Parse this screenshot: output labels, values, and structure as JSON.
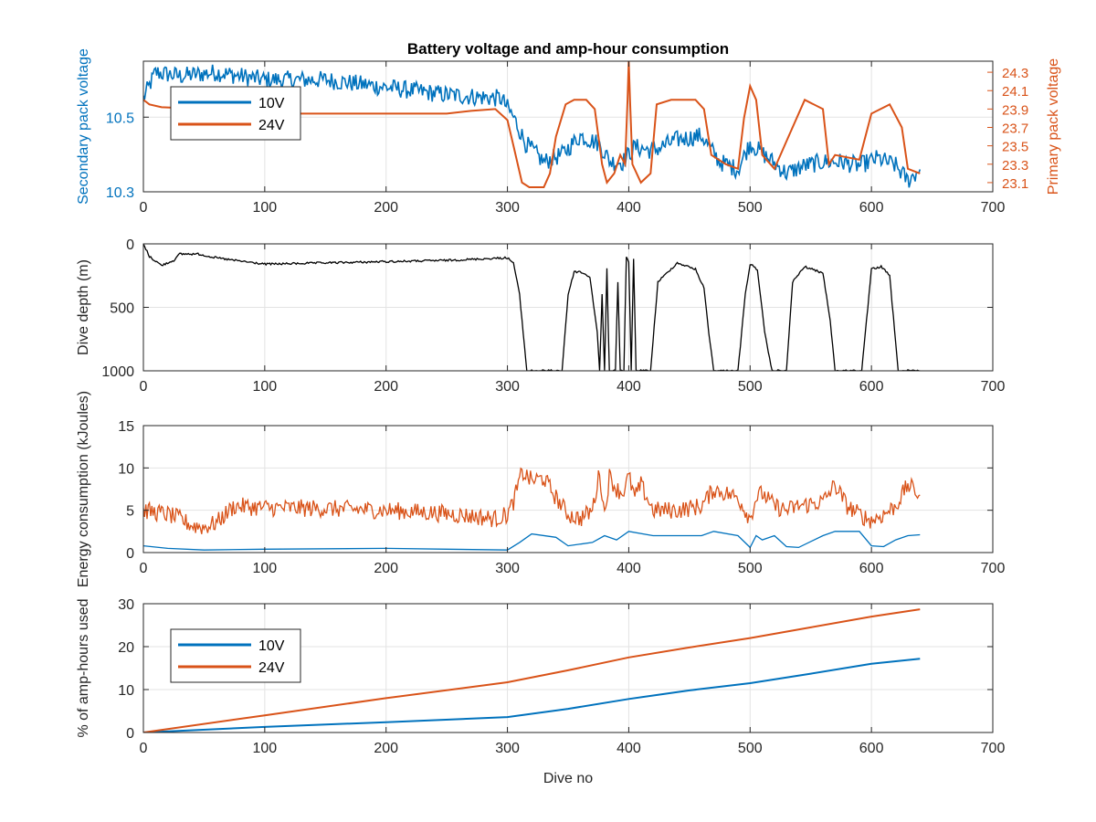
{
  "chart_data": [
    {
      "type": "line",
      "title": "Battery voltage and amp-hour consumption",
      "xlabel": "",
      "xlim": [
        0,
        700
      ],
      "xticks": [
        0,
        100,
        200,
        300,
        400,
        500,
        600,
        700
      ],
      "ylabel": "Secondary pack voltage",
      "ylim": [
        10.3,
        10.65
      ],
      "yticks": [
        10.3,
        10.5
      ],
      "y2label": "Primary pack voltage",
      "y2lim": [
        23.0,
        24.42
      ],
      "y2ticks": [
        23.1,
        23.3,
        23.5,
        23.7,
        23.9,
        24.1,
        24.3
      ],
      "grid": true,
      "legend": {
        "location": "top-left",
        "entries": [
          "10V",
          "24V"
        ]
      },
      "series": [
        {
          "name": "10V",
          "axis": "left",
          "color": "#0072bd",
          "noisy": true,
          "x": [
            0,
            10,
            30,
            60,
            100,
            150,
            200,
            250,
            295,
            305,
            315,
            330,
            345,
            360,
            375,
            385,
            395,
            405,
            420,
            440,
            460,
            475,
            490,
            500,
            515,
            530,
            545,
            560,
            575,
            590,
            605,
            620,
            630,
            640
          ],
          "y": [
            10.55,
            10.62,
            10.61,
            10.62,
            10.6,
            10.6,
            10.58,
            10.56,
            10.55,
            10.5,
            10.43,
            10.38,
            10.4,
            10.45,
            10.43,
            10.38,
            10.38,
            10.42,
            10.41,
            10.44,
            10.45,
            10.38,
            10.36,
            10.43,
            10.39,
            10.35,
            10.37,
            10.38,
            10.38,
            10.37,
            10.39,
            10.37,
            10.33,
            10.36
          ]
        },
        {
          "name": "24V",
          "axis": "right",
          "color": "#d95319",
          "noisy": false,
          "x": [
            0,
            5,
            15,
            50,
            100,
            150,
            200,
            250,
            270,
            290,
            300,
            305,
            312,
            318,
            330,
            335,
            340,
            348,
            355,
            365,
            372,
            378,
            382,
            388,
            393,
            397,
            399,
            400,
            401,
            403,
            410,
            418,
            423,
            435,
            455,
            462,
            468,
            480,
            490,
            495,
            500,
            505,
            510,
            520,
            530,
            545,
            560,
            565,
            570,
            590,
            600,
            615,
            625,
            630,
            640
          ],
          "y": [
            24.0,
            23.95,
            23.92,
            23.9,
            23.85,
            23.85,
            23.85,
            23.85,
            23.88,
            23.9,
            23.78,
            23.5,
            23.1,
            23.05,
            23.05,
            23.2,
            23.6,
            23.95,
            24.0,
            24.0,
            23.9,
            23.3,
            23.1,
            23.2,
            23.4,
            23.3,
            24.0,
            24.42,
            24.0,
            23.3,
            23.1,
            23.2,
            23.95,
            24.0,
            24.0,
            23.9,
            23.4,
            23.3,
            23.25,
            23.8,
            24.15,
            24.0,
            23.4,
            23.25,
            23.55,
            24.0,
            23.9,
            23.3,
            23.4,
            23.35,
            23.85,
            23.95,
            23.7,
            23.25,
            23.2
          ]
        }
      ]
    },
    {
      "type": "line",
      "xlim": [
        0,
        700
      ],
      "xticks": [
        0,
        100,
        200,
        300,
        400,
        500,
        600,
        700
      ],
      "ylabel": "Dive depth (m)",
      "ylim": [
        0,
        1000
      ],
      "yticks": [
        0,
        500,
        1000
      ],
      "y_reversed": true,
      "grid": true,
      "series": [
        {
          "color": "#000000",
          "noisy": true,
          "x": [
            0,
            5,
            15,
            25,
            30,
            45,
            60,
            75,
            100,
            150,
            200,
            250,
            300,
            305,
            310,
            316,
            330,
            345,
            350,
            355,
            360,
            368,
            374,
            376,
            378,
            380,
            382,
            384,
            386,
            389,
            391,
            393,
            396,
            398,
            400,
            402,
            404,
            406,
            410,
            418,
            424,
            440,
            455,
            462,
            466,
            470,
            490,
            496,
            500,
            506,
            512,
            518,
            530,
            535,
            545,
            560,
            566,
            570,
            592,
            597,
            600,
            608,
            615,
            622,
            628,
            640
          ],
          "y": [
            0,
            100,
            170,
            130,
            80,
            80,
            110,
            130,
            160,
            150,
            140,
            130,
            110,
            150,
            400,
            1000,
            1000,
            1000,
            400,
            220,
            220,
            260,
            700,
            1000,
            400,
            1000,
            200,
            1000,
            1000,
            1000,
            300,
            1000,
            1000,
            100,
            150,
            1000,
            120,
            1000,
            1000,
            1000,
            300,
            150,
            200,
            350,
            700,
            1000,
            1000,
            400,
            160,
            200,
            700,
            1000,
            1000,
            300,
            180,
            230,
            600,
            1000,
            1000,
            500,
            200,
            180,
            250,
            1000,
            1000,
            1000
          ]
        }
      ]
    },
    {
      "type": "line",
      "xlim": [
        0,
        700
      ],
      "xticks": [
        0,
        100,
        200,
        300,
        400,
        500,
        600,
        700
      ],
      "ylabel": "Energy consumption (kJoules)",
      "ylim": [
        0,
        15
      ],
      "yticks": [
        0,
        5,
        10,
        15
      ],
      "grid": true,
      "series": [
        {
          "name": "24V",
          "color": "#d95319",
          "noisy": true,
          "x": [
            0,
            20,
            30,
            40,
            50,
            60,
            75,
            100,
            150,
            200,
            250,
            290,
            300,
            305,
            312,
            320,
            330,
            340,
            350,
            360,
            370,
            376,
            380,
            384,
            390,
            395,
            400,
            405,
            410,
            420,
            430,
            440,
            460,
            470,
            480,
            490,
            500,
            505,
            510,
            520,
            530,
            540,
            560,
            570,
            580,
            590,
            600,
            610,
            620,
            630,
            640
          ],
          "y": [
            5.0,
            4.5,
            4.0,
            3.2,
            3.0,
            3.5,
            5.5,
            5.3,
            5.2,
            5.0,
            4.6,
            4.0,
            4.5,
            6.0,
            9.5,
            8.5,
            8.8,
            6.5,
            4.5,
            4.0,
            5.0,
            9.5,
            4.5,
            9.0,
            7.5,
            7.0,
            9.0,
            6.5,
            8.0,
            5.0,
            5.0,
            5.0,
            5.5,
            7.5,
            7.0,
            6.5,
            4.0,
            6.5,
            7.0,
            5.5,
            5.0,
            5.5,
            6.0,
            8.0,
            5.5,
            4.5,
            3.8,
            4.5,
            5.5,
            8.0,
            6.8
          ]
        },
        {
          "name": "10V",
          "color": "#0072bd",
          "noisy": false,
          "x": [
            0,
            20,
            50,
            100,
            200,
            250,
            300,
            310,
            320,
            340,
            350,
            370,
            380,
            390,
            400,
            420,
            460,
            470,
            490,
            500,
            505,
            510,
            520,
            530,
            540,
            560,
            570,
            590,
            600,
            610,
            620,
            630,
            640
          ],
          "y": [
            0.8,
            0.5,
            0.3,
            0.4,
            0.5,
            0.4,
            0.3,
            1.2,
            2.2,
            1.8,
            0.8,
            1.2,
            2.0,
            1.5,
            2.5,
            2.0,
            2.0,
            2.5,
            2.0,
            0.6,
            2.0,
            1.5,
            2.0,
            0.7,
            0.6,
            2.0,
            2.5,
            2.5,
            0.8,
            0.7,
            1.5,
            2.0,
            2.1
          ]
        }
      ]
    },
    {
      "type": "line",
      "xlabel": "Dive no",
      "xlim": [
        0,
        700
      ],
      "xticks": [
        0,
        100,
        200,
        300,
        400,
        500,
        600,
        700
      ],
      "ylabel": "% of amp-hours used",
      "ylim": [
        0,
        30
      ],
      "yticks": [
        0,
        10,
        20,
        30
      ],
      "grid": true,
      "legend": {
        "location": "top-left",
        "entries": [
          "10V",
          "24V"
        ]
      },
      "series": [
        {
          "name": "10V",
          "color": "#0072bd",
          "noisy": false,
          "x": [
            0,
            100,
            200,
            300,
            350,
            400,
            450,
            500,
            550,
            600,
            640
          ],
          "y": [
            0,
            1.3,
            2.4,
            3.6,
            5.5,
            7.8,
            9.8,
            11.5,
            13.7,
            16.0,
            17.2
          ]
        },
        {
          "name": "24V",
          "color": "#d95319",
          "noisy": false,
          "x": [
            0,
            100,
            200,
            300,
            350,
            400,
            450,
            500,
            550,
            600,
            640
          ],
          "y": [
            0,
            4.0,
            8.0,
            11.7,
            14.5,
            17.5,
            19.8,
            22.0,
            24.5,
            27.0,
            28.7
          ]
        }
      ]
    }
  ]
}
